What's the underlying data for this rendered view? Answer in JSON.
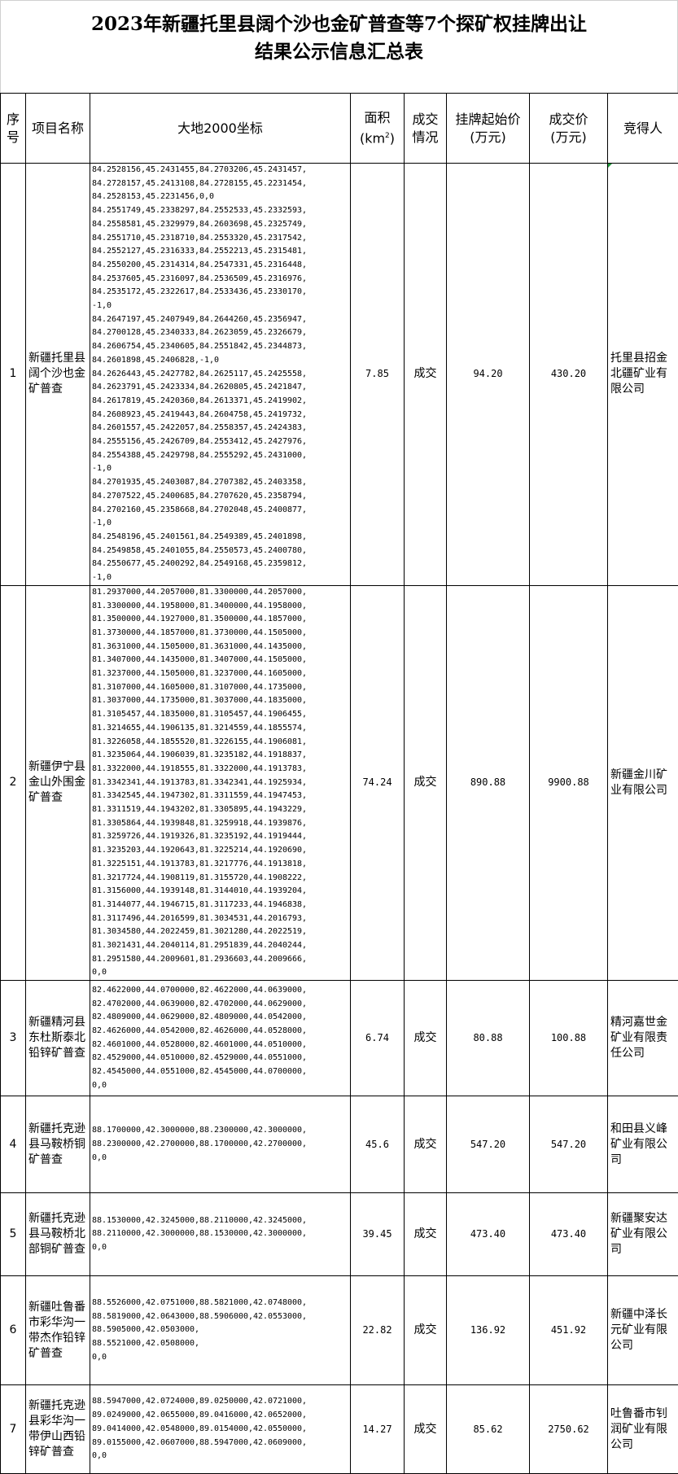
{
  "title_line1": "2023年新疆托里县阔个沙也金矿普查等7个探矿权挂牌出让",
  "title_line2": "结果公示信息汇总表",
  "headers": {
    "seq": "序号",
    "name": "项目名称",
    "coords": "大地2000坐标",
    "area": "面积",
    "area_unit": "(km",
    "area_unit_sup": "2",
    "area_unit_end": ")",
    "status": "成交情况",
    "start_price": "挂牌起始价",
    "start_price_unit": "(万元)",
    "final_price": "成交价",
    "final_price_unit": "(万元)",
    "winner": "竞得人"
  },
  "rows": [
    {
      "seq": "1",
      "name": "新疆托里县阔个沙也金矿普查",
      "coords": "84.2528156,45.2431455,84.2703206,45.2431457,\n84.2728157,45.2413108,84.2728155,45.2231454,\n84.2528153,45.2231456,0,0\n84.2551749,45.2338297,84.2552533,45.2332593,\n84.2558581,45.2329979,84.2603698,45.2325749,\n84.2551710,45.2318710,84.2553320,45.2317542,\n84.2552127,45.2316333,84.2552213,45.2315481,\n84.2550200,45.2314314,84.2547331,45.2316448,\n84.2537605,45.2316097,84.2536509,45.2316976,\n84.2535172,45.2322617,84.2533436,45.2330170,\n-1,0\n84.2647197,45.2407949,84.2644260,45.2356947,\n84.2700128,45.2340333,84.2623059,45.2326679,\n84.2606754,45.2340605,84.2551842,45.2344873,\n84.2601898,45.2406828,-1,0\n84.2626443,45.2427782,84.2625117,45.2425558,\n84.2623791,45.2423334,84.2620805,45.2421847,\n84.2617819,45.2420360,84.2613371,45.2419902,\n84.2608923,45.2419443,84.2604758,45.2419732,\n84.2601557,45.2422057,84.2558357,45.2424383,\n84.2555156,45.2426709,84.2553412,45.2427976,\n84.2554388,45.2429798,84.2555292,45.2431000,\n-1,0\n84.2701935,45.2403087,84.2707382,45.2403358,\n84.2707522,45.2400685,84.2707620,45.2358794,\n84.2702160,45.2358668,84.2702048,45.2400877,\n-1,0\n84.2548196,45.2401561,84.2549389,45.2401898,\n84.2549858,45.2401055,84.2550573,45.2400780,\n84.2550677,45.2400292,84.2549168,45.2359812,\n-1,0",
      "area": "7.85",
      "status": "成交",
      "start_price": "94.20",
      "final_price": "430.20",
      "winner": "托里县招金北疆矿业有限公司"
    },
    {
      "seq": "2",
      "name": "新疆伊宁县金山外围金矿普查",
      "coords": "81.2937000,44.2057000,81.3300000,44.2057000,\n81.3300000,44.1958000,81.3400000,44.1958000,\n81.3500000,44.1927000,81.3500000,44.1857000,\n81.3730000,44.1857000,81.3730000,44.1505000,\n81.3631000,44.1505000,81.3631000,44.1435000,\n81.3407000,44.1435000,81.3407000,44.1505000,\n81.3237000,44.1505000,81.3237000,44.1605000,\n81.3107000,44.1605000,81.3107000,44.1735000,\n81.3037000,44.1735000,81.3037000,44.1835000,\n81.3105457,44.1835000,81.3105457,44.1906455,\n81.3214655,44.1906135,81.3214559,44.1855574,\n81.3226058,44.1855520,81.3226155,44.1906081,\n81.3235064,44.1906039,81.3235182,44.1918837,\n81.3322000,44.1918555,81.3322000,44.1913783,\n81.3342341,44.1913783,81.3342341,44.1925934,\n81.3342545,44.1947302,81.3311559,44.1947453,\n81.3311519,44.1943202,81.3305895,44.1943229,\n81.3305864,44.1939848,81.3259918,44.1939876,\n81.3259726,44.1919326,81.3235192,44.1919444,\n81.3235203,44.1920643,81.3225214,44.1920690,\n81.3225151,44.1913783,81.3217776,44.1913818,\n81.3217724,44.1908119,81.3155720,44.1908222,\n81.3156000,44.1939148,81.3144010,44.1939204,\n81.3144077,44.1946715,81.3117233,44.1946838,\n81.3117496,44.2016599,81.3034531,44.2016793,\n81.3034580,44.2022459,81.3021280,44.2022519,\n81.3021431,44.2040114,81.2951839,44.2040244,\n81.2951580,44.2009601,81.2936603,44.2009666,\n0,0",
      "area": "74.24",
      "status": "成交",
      "start_price": "890.88",
      "final_price": "9900.88",
      "winner": "新疆金川矿业有限公司"
    },
    {
      "seq": "3",
      "name": "新疆精河县东杜斯泰北铅锌矿普查",
      "coords": "82.4622000,44.0700000,82.4622000,44.0639000,\n82.4702000,44.0639000,82.4702000,44.0629000,\n82.4809000,44.0629000,82.4809000,44.0542000,\n82.4626000,44.0542000,82.4626000,44.0528000,\n82.4601000,44.0528000,82.4601000,44.0510000,\n82.4529000,44.0510000,82.4529000,44.0551000,\n82.4545000,44.0551000,82.4545000,44.0700000,\n0,0",
      "area": "6.74",
      "status": "成交",
      "start_price": "80.88",
      "final_price": "100.88",
      "winner": "精河嘉世金矿业有限责任公司"
    },
    {
      "seq": "4",
      "name": "新疆托克逊县马鞍桥铜矿普查",
      "coords": "88.1700000,42.3000000,88.2300000,42.3000000,\n88.2300000,42.2700000,88.1700000,42.2700000,\n0,0",
      "area": "45.6",
      "status": "成交",
      "start_price": "547.20",
      "final_price": "547.20",
      "winner": "和田县义峰矿业有限公司"
    },
    {
      "seq": "5",
      "name": "新疆托克逊县马鞍桥北部铜矿普查",
      "coords": "88.1530000,42.3245000,88.2110000,42.3245000,\n88.2110000,42.3000000,88.1530000,42.3000000,\n0,0",
      "area": "39.45",
      "status": "成交",
      "start_price": "473.40",
      "final_price": "473.40",
      "winner": "新疆聚安达矿业有限公司"
    },
    {
      "seq": "6",
      "name": "新疆吐鲁番市彩华沟一带杰作铅锌矿普查",
      "coords": "88.5526000,42.0751000,88.5821000,42.0748000,\n88.5819000,42.0643000,88.5906000,42.0553000,\n88.5905000,42.0503000,\n88.5521000,42.0508000,\n0,0",
      "area": "22.82",
      "status": "成交",
      "start_price": "136.92",
      "final_price": "451.92",
      "winner": "新疆中泽长元矿业有限公司"
    },
    {
      "seq": "7",
      "name": "新疆托克逊县彩华沟一带伊山西铅锌矿普查",
      "coords": "88.5947000,42.0724000,89.0250000,42.0721000,\n89.0249000,42.0655000,89.0416000,42.0652000,\n89.0414000,42.0548000,89.0154000,42.0550000,\n89.0155000,42.0607000,88.5947000,42.0609000,\n0,0",
      "area": "14.27",
      "status": "成交",
      "start_price": "85.62",
      "final_price": "2750.62",
      "winner": "吐鲁番市钊润矿业有限公司"
    }
  ]
}
